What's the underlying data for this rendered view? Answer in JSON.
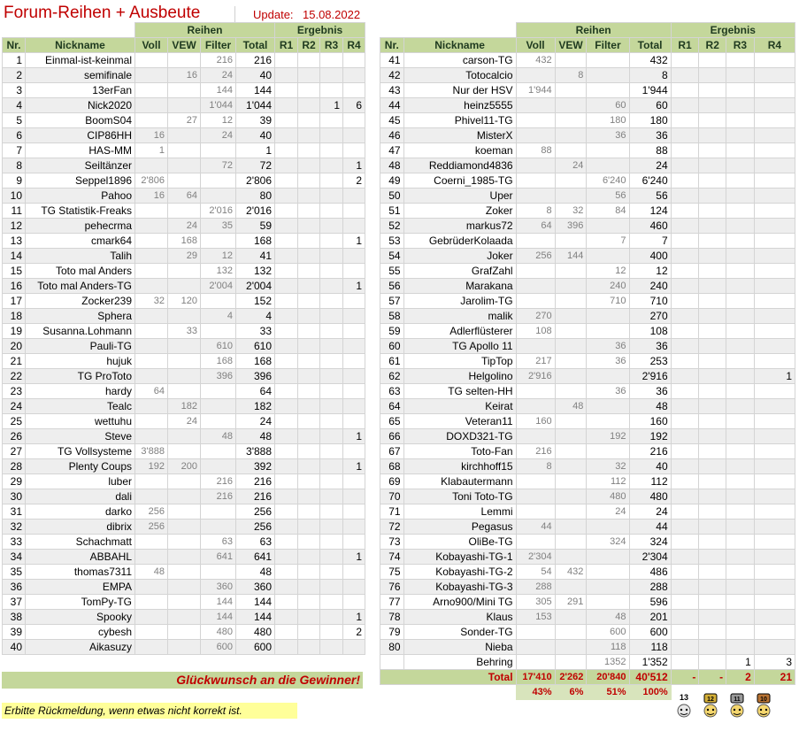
{
  "header": {
    "title": "Forum-Reihen + Ausbeute",
    "update_label": "Update:",
    "update_date": "15.08.2022"
  },
  "columns": {
    "group_reihen": "Reihen",
    "group_ergebnis": "Ergebnis",
    "nr": "Nr.",
    "nickname": "Nickname",
    "voll": "Voll",
    "vew": "VEW",
    "filter": "Filter",
    "total": "Total",
    "r1": "R1",
    "r2": "R2",
    "r3": "R3",
    "r4": "R4"
  },
  "left_rows": [
    {
      "nr": "1",
      "nick": "Einmal-ist-keinmal",
      "voll": "",
      "vew": "",
      "filter": "216",
      "total": "216",
      "r1": "",
      "r2": "",
      "r3": "",
      "r4": ""
    },
    {
      "nr": "2",
      "nick": "semifinale",
      "voll": "",
      "vew": "16",
      "filter": "24",
      "total": "40",
      "r1": "",
      "r2": "",
      "r3": "",
      "r4": ""
    },
    {
      "nr": "3",
      "nick": "13erFan",
      "voll": "",
      "vew": "",
      "filter": "144",
      "total": "144",
      "r1": "",
      "r2": "",
      "r3": "",
      "r4": ""
    },
    {
      "nr": "4",
      "nick": "Nick2020",
      "voll": "",
      "vew": "",
      "filter": "1'044",
      "total": "1'044",
      "r1": "",
      "r2": "",
      "r3": "1",
      "r4": "6"
    },
    {
      "nr": "5",
      "nick": "BoomS04",
      "voll": "",
      "vew": "27",
      "filter": "12",
      "total": "39",
      "r1": "",
      "r2": "",
      "r3": "",
      "r4": ""
    },
    {
      "nr": "6",
      "nick": "CIP86HH",
      "voll": "16",
      "vew": "",
      "filter": "24",
      "total": "40",
      "r1": "",
      "r2": "",
      "r3": "",
      "r4": ""
    },
    {
      "nr": "7",
      "nick": "HAS-MM",
      "voll": "1",
      "vew": "",
      "filter": "",
      "total": "1",
      "r1": "",
      "r2": "",
      "r3": "",
      "r4": ""
    },
    {
      "nr": "8",
      "nick": "Seiltänzer",
      "voll": "",
      "vew": "",
      "filter": "72",
      "total": "72",
      "r1": "",
      "r2": "",
      "r3": "",
      "r4": "1"
    },
    {
      "nr": "9",
      "nick": "Seppel1896",
      "voll": "2'806",
      "vew": "",
      "filter": "",
      "total": "2'806",
      "r1": "",
      "r2": "",
      "r3": "",
      "r4": "2"
    },
    {
      "nr": "10",
      "nick": "Pahoo",
      "voll": "16",
      "vew": "64",
      "filter": "",
      "total": "80",
      "r1": "",
      "r2": "",
      "r3": "",
      "r4": ""
    },
    {
      "nr": "11",
      "nick": "TG Statistik-Freaks",
      "voll": "",
      "vew": "",
      "filter": "2'016",
      "total": "2'016",
      "r1": "",
      "r2": "",
      "r3": "",
      "r4": ""
    },
    {
      "nr": "12",
      "nick": "pehecrma",
      "voll": "",
      "vew": "24",
      "filter": "35",
      "total": "59",
      "r1": "",
      "r2": "",
      "r3": "",
      "r4": ""
    },
    {
      "nr": "13",
      "nick": "cmark64",
      "voll": "",
      "vew": "168",
      "filter": "",
      "total": "168",
      "r1": "",
      "r2": "",
      "r3": "",
      "r4": "1"
    },
    {
      "nr": "14",
      "nick": "Talih",
      "voll": "",
      "vew": "29",
      "filter": "12",
      "total": "41",
      "r1": "",
      "r2": "",
      "r3": "",
      "r4": ""
    },
    {
      "nr": "15",
      "nick": "Toto mal Anders",
      "voll": "",
      "vew": "",
      "filter": "132",
      "total": "132",
      "r1": "",
      "r2": "",
      "r3": "",
      "r4": ""
    },
    {
      "nr": "16",
      "nick": "Toto mal Anders-TG",
      "voll": "",
      "vew": "",
      "filter": "2'004",
      "total": "2'004",
      "r1": "",
      "r2": "",
      "r3": "",
      "r4": "1"
    },
    {
      "nr": "17",
      "nick": "Zocker239",
      "voll": "32",
      "vew": "120",
      "filter": "",
      "total": "152",
      "r1": "",
      "r2": "",
      "r3": "",
      "r4": ""
    },
    {
      "nr": "18",
      "nick": "Sphera",
      "voll": "",
      "vew": "",
      "filter": "4",
      "total": "4",
      "r1": "",
      "r2": "",
      "r3": "",
      "r4": ""
    },
    {
      "nr": "19",
      "nick": "Susanna.Lohmann",
      "voll": "",
      "vew": "33",
      "filter": "",
      "total": "33",
      "r1": "",
      "r2": "",
      "r3": "",
      "r4": ""
    },
    {
      "nr": "20",
      "nick": "Pauli-TG",
      "voll": "",
      "vew": "",
      "filter": "610",
      "total": "610",
      "r1": "",
      "r2": "",
      "r3": "",
      "r4": ""
    },
    {
      "nr": "21",
      "nick": "hujuk",
      "voll": "",
      "vew": "",
      "filter": "168",
      "total": "168",
      "r1": "",
      "r2": "",
      "r3": "",
      "r4": ""
    },
    {
      "nr": "22",
      "nick": "TG ProToto",
      "voll": "",
      "vew": "",
      "filter": "396",
      "total": "396",
      "r1": "",
      "r2": "",
      "r3": "",
      "r4": ""
    },
    {
      "nr": "23",
      "nick": "hardy",
      "voll": "64",
      "vew": "",
      "filter": "",
      "total": "64",
      "r1": "",
      "r2": "",
      "r3": "",
      "r4": ""
    },
    {
      "nr": "24",
      "nick": "Tealc",
      "voll": "",
      "vew": "182",
      "filter": "",
      "total": "182",
      "r1": "",
      "r2": "",
      "r3": "",
      "r4": ""
    },
    {
      "nr": "25",
      "nick": "wettuhu",
      "voll": "",
      "vew": "24",
      "filter": "",
      "total": "24",
      "r1": "",
      "r2": "",
      "r3": "",
      "r4": ""
    },
    {
      "nr": "26",
      "nick": "Steve",
      "voll": "",
      "vew": "",
      "filter": "48",
      "total": "48",
      "r1": "",
      "r2": "",
      "r3": "",
      "r4": "1"
    },
    {
      "nr": "27",
      "nick": "TG Vollsysteme",
      "voll": "3'888",
      "vew": "",
      "filter": "",
      "total": "3'888",
      "r1": "",
      "r2": "",
      "r3": "",
      "r4": ""
    },
    {
      "nr": "28",
      "nick": "Plenty Coups",
      "voll": "192",
      "vew": "200",
      "filter": "",
      "total": "392",
      "r1": "",
      "r2": "",
      "r3": "",
      "r4": "1"
    },
    {
      "nr": "29",
      "nick": "luber",
      "voll": "",
      "vew": "",
      "filter": "216",
      "total": "216",
      "r1": "",
      "r2": "",
      "r3": "",
      "r4": ""
    },
    {
      "nr": "30",
      "nick": "dali",
      "voll": "",
      "vew": "",
      "filter": "216",
      "total": "216",
      "r1": "",
      "r2": "",
      "r3": "",
      "r4": ""
    },
    {
      "nr": "31",
      "nick": "darko",
      "voll": "256",
      "vew": "",
      "filter": "",
      "total": "256",
      "r1": "",
      "r2": "",
      "r3": "",
      "r4": ""
    },
    {
      "nr": "32",
      "nick": "dibrix",
      "voll": "256",
      "vew": "",
      "filter": "",
      "total": "256",
      "r1": "",
      "r2": "",
      "r3": "",
      "r4": ""
    },
    {
      "nr": "33",
      "nick": "Schachmatt",
      "voll": "",
      "vew": "",
      "filter": "63",
      "total": "63",
      "r1": "",
      "r2": "",
      "r3": "",
      "r4": ""
    },
    {
      "nr": "34",
      "nick": "ABBAHL",
      "voll": "",
      "vew": "",
      "filter": "641",
      "total": "641",
      "r1": "",
      "r2": "",
      "r3": "",
      "r4": "1"
    },
    {
      "nr": "35",
      "nick": "thomas7311",
      "voll": "48",
      "vew": "",
      "filter": "",
      "total": "48",
      "r1": "",
      "r2": "",
      "r3": "",
      "r4": ""
    },
    {
      "nr": "36",
      "nick": "EMPA",
      "voll": "",
      "vew": "",
      "filter": "360",
      "total": "360",
      "r1": "",
      "r2": "",
      "r3": "",
      "r4": ""
    },
    {
      "nr": "37",
      "nick": "TomPy-TG",
      "voll": "",
      "vew": "",
      "filter": "144",
      "total": "144",
      "r1": "",
      "r2": "",
      "r3": "",
      "r4": ""
    },
    {
      "nr": "38",
      "nick": "Spooky",
      "voll": "",
      "vew": "",
      "filter": "144",
      "total": "144",
      "r1": "",
      "r2": "",
      "r3": "",
      "r4": "1"
    },
    {
      "nr": "39",
      "nick": "cybesh",
      "voll": "",
      "vew": "",
      "filter": "480",
      "total": "480",
      "r1": "",
      "r2": "",
      "r3": "",
      "r4": "2"
    },
    {
      "nr": "40",
      "nick": "Aikasuzy",
      "voll": "",
      "vew": "",
      "filter": "600",
      "total": "600",
      "r1": "",
      "r2": "",
      "r3": "",
      "r4": ""
    }
  ],
  "right_rows": [
    {
      "nr": "41",
      "nick": "carson-TG",
      "voll": "432",
      "vew": "",
      "filter": "",
      "total": "432",
      "r1": "",
      "r2": "",
      "r3": "",
      "r4": ""
    },
    {
      "nr": "42",
      "nick": "Totocalcio",
      "voll": "",
      "vew": "8",
      "filter": "",
      "total": "8",
      "r1": "",
      "r2": "",
      "r3": "",
      "r4": ""
    },
    {
      "nr": "43",
      "nick": "Nur der HSV",
      "voll": "1'944",
      "vew": "",
      "filter": "",
      "total": "1'944",
      "r1": "",
      "r2": "",
      "r3": "",
      "r4": ""
    },
    {
      "nr": "44",
      "nick": "heinz5555",
      "voll": "",
      "vew": "",
      "filter": "60",
      "total": "60",
      "r1": "",
      "r2": "",
      "r3": "",
      "r4": ""
    },
    {
      "nr": "45",
      "nick": "Phivel11-TG",
      "voll": "",
      "vew": "",
      "filter": "180",
      "total": "180",
      "r1": "",
      "r2": "",
      "r3": "",
      "r4": ""
    },
    {
      "nr": "46",
      "nick": "MisterX",
      "voll": "",
      "vew": "",
      "filter": "36",
      "total": "36",
      "r1": "",
      "r2": "",
      "r3": "",
      "r4": ""
    },
    {
      "nr": "47",
      "nick": "koeman",
      "voll": "88",
      "vew": "",
      "filter": "",
      "total": "88",
      "r1": "",
      "r2": "",
      "r3": "",
      "r4": ""
    },
    {
      "nr": "48",
      "nick": "Reddiamond4836",
      "voll": "",
      "vew": "24",
      "filter": "",
      "total": "24",
      "r1": "",
      "r2": "",
      "r3": "",
      "r4": ""
    },
    {
      "nr": "49",
      "nick": "Coerni_1985-TG",
      "voll": "",
      "vew": "",
      "filter": "6'240",
      "total": "6'240",
      "r1": "",
      "r2": "",
      "r3": "",
      "r4": ""
    },
    {
      "nr": "50",
      "nick": "Uper",
      "voll": "",
      "vew": "",
      "filter": "56",
      "total": "56",
      "r1": "",
      "r2": "",
      "r3": "",
      "r4": ""
    },
    {
      "nr": "51",
      "nick": "Zoker",
      "voll": "8",
      "vew": "32",
      "filter": "84",
      "total": "124",
      "r1": "",
      "r2": "",
      "r3": "",
      "r4": ""
    },
    {
      "nr": "52",
      "nick": "markus72",
      "voll": "64",
      "vew": "396",
      "filter": "",
      "total": "460",
      "r1": "",
      "r2": "",
      "r3": "",
      "r4": ""
    },
    {
      "nr": "53",
      "nick": "GebrüderKolaada",
      "voll": "",
      "vew": "",
      "filter": "7",
      "total": "7",
      "r1": "",
      "r2": "",
      "r3": "",
      "r4": ""
    },
    {
      "nr": "54",
      "nick": "Joker",
      "voll": "256",
      "vew": "144",
      "filter": "",
      "total": "400",
      "r1": "",
      "r2": "",
      "r3": "",
      "r4": ""
    },
    {
      "nr": "55",
      "nick": "GrafZahl",
      "voll": "",
      "vew": "",
      "filter": "12",
      "total": "12",
      "r1": "",
      "r2": "",
      "r3": "",
      "r4": ""
    },
    {
      "nr": "56",
      "nick": "Marakana",
      "voll": "",
      "vew": "",
      "filter": "240",
      "total": "240",
      "r1": "",
      "r2": "",
      "r3": "",
      "r4": ""
    },
    {
      "nr": "57",
      "nick": "Jarolim-TG",
      "voll": "",
      "vew": "",
      "filter": "710",
      "total": "710",
      "r1": "",
      "r2": "",
      "r3": "",
      "r4": ""
    },
    {
      "nr": "58",
      "nick": "malik",
      "voll": "270",
      "vew": "",
      "filter": "",
      "total": "270",
      "r1": "",
      "r2": "",
      "r3": "",
      "r4": ""
    },
    {
      "nr": "59",
      "nick": "Adlerflüsterer",
      "voll": "108",
      "vew": "",
      "filter": "",
      "total": "108",
      "r1": "",
      "r2": "",
      "r3": "",
      "r4": ""
    },
    {
      "nr": "60",
      "nick": "TG Apollo 11",
      "voll": "",
      "vew": "",
      "filter": "36",
      "total": "36",
      "r1": "",
      "r2": "",
      "r3": "",
      "r4": ""
    },
    {
      "nr": "61",
      "nick": "TipTop",
      "voll": "217",
      "vew": "",
      "filter": "36",
      "total": "253",
      "r1": "",
      "r2": "",
      "r3": "",
      "r4": ""
    },
    {
      "nr": "62",
      "nick": "Helgolino",
      "voll": "2'916",
      "vew": "",
      "filter": "",
      "total": "2'916",
      "r1": "",
      "r2": "",
      "r3": "",
      "r4": "1"
    },
    {
      "nr": "63",
      "nick": "TG selten-HH",
      "voll": "",
      "vew": "",
      "filter": "36",
      "total": "36",
      "r1": "",
      "r2": "",
      "r3": "",
      "r4": ""
    },
    {
      "nr": "64",
      "nick": "Keirat",
      "voll": "",
      "vew": "48",
      "filter": "",
      "total": "48",
      "r1": "",
      "r2": "",
      "r3": "",
      "r4": ""
    },
    {
      "nr": "65",
      "nick": "Veteran11",
      "voll": "160",
      "vew": "",
      "filter": "",
      "total": "160",
      "r1": "",
      "r2": "",
      "r3": "",
      "r4": ""
    },
    {
      "nr": "66",
      "nick": "DOXD321-TG",
      "voll": "",
      "vew": "",
      "filter": "192",
      "total": "192",
      "r1": "",
      "r2": "",
      "r3": "",
      "r4": ""
    },
    {
      "nr": "67",
      "nick": "Toto-Fan",
      "voll": "216",
      "vew": "",
      "filter": "",
      "total": "216",
      "r1": "",
      "r2": "",
      "r3": "",
      "r4": ""
    },
    {
      "nr": "68",
      "nick": "kirchhoff15",
      "voll": "8",
      "vew": "",
      "filter": "32",
      "total": "40",
      "r1": "",
      "r2": "",
      "r3": "",
      "r4": ""
    },
    {
      "nr": "69",
      "nick": "Klabautermann",
      "voll": "",
      "vew": "",
      "filter": "112",
      "total": "112",
      "r1": "",
      "r2": "",
      "r3": "",
      "r4": ""
    },
    {
      "nr": "70",
      "nick": "Toni Toto-TG",
      "voll": "",
      "vew": "",
      "filter": "480",
      "total": "480",
      "r1": "",
      "r2": "",
      "r3": "",
      "r4": ""
    },
    {
      "nr": "71",
      "nick": "Lemmi",
      "voll": "",
      "vew": "",
      "filter": "24",
      "total": "24",
      "r1": "",
      "r2": "",
      "r3": "",
      "r4": ""
    },
    {
      "nr": "72",
      "nick": "Pegasus",
      "voll": "44",
      "vew": "",
      "filter": "",
      "total": "44",
      "r1": "",
      "r2": "",
      "r3": "",
      "r4": ""
    },
    {
      "nr": "73",
      "nick": "OliBe-TG",
      "voll": "",
      "vew": "",
      "filter": "324",
      "total": "324",
      "r1": "",
      "r2": "",
      "r3": "",
      "r4": ""
    },
    {
      "nr": "74",
      "nick": "Kobayashi-TG-1",
      "voll": "2'304",
      "vew": "",
      "filter": "",
      "total": "2'304",
      "r1": "",
      "r2": "",
      "r3": "",
      "r4": ""
    },
    {
      "nr": "75",
      "nick": "Kobayashi-TG-2",
      "voll": "54",
      "vew": "432",
      "filter": "",
      "total": "486",
      "r1": "",
      "r2": "",
      "r3": "",
      "r4": ""
    },
    {
      "nr": "76",
      "nick": "Kobayashi-TG-3",
      "voll": "288",
      "vew": "",
      "filter": "",
      "total": "288",
      "r1": "",
      "r2": "",
      "r3": "",
      "r4": ""
    },
    {
      "nr": "77",
      "nick": "Arno900/Mini TG",
      "voll": "305",
      "vew": "291",
      "filter": "",
      "total": "596",
      "r1": "",
      "r2": "",
      "r3": "",
      "r4": ""
    },
    {
      "nr": "78",
      "nick": "Klaus",
      "voll": "153",
      "vew": "",
      "filter": "48",
      "total": "201",
      "r1": "",
      "r2": "",
      "r3": "",
      "r4": ""
    },
    {
      "nr": "79",
      "nick": "Sonder-TG",
      "voll": "",
      "vew": "",
      "filter": "600",
      "total": "600",
      "r1": "",
      "r2": "",
      "r3": "",
      "r4": ""
    },
    {
      "nr": "80",
      "nick": "Nieba",
      "voll": "",
      "vew": "",
      "filter": "118",
      "total": "118",
      "r1": "",
      "r2": "",
      "r3": "",
      "r4": ""
    },
    {
      "nr": "",
      "nick": "Behring",
      "voll": "",
      "vew": "",
      "filter": "1352",
      "total": "1'352",
      "r1": "",
      "r2": "",
      "r3": "1",
      "r4": "3"
    }
  ],
  "totals": {
    "label": "Total",
    "voll": "17'410",
    "vew": "2'262",
    "filter": "20'840",
    "total": "40'512",
    "r1": "-",
    "r2": "-",
    "r3": "2",
    "r4": "21"
  },
  "percentages": {
    "voll": "43%",
    "vew": "6%",
    "filter": "51%",
    "total": "100%"
  },
  "trophies": [
    "13",
    "12",
    "11",
    "10"
  ],
  "congrats": "Glückwunsch an die Gewinner!",
  "footer_note": "Erbitte Rückmeldung, wenn etwas nicht korrekt ist.",
  "colors": {
    "header_green": "#c4d79b",
    "pct_green": "#d8e4bc",
    "accent_red": "#c00000",
    "note_yellow": "#ffff99"
  }
}
